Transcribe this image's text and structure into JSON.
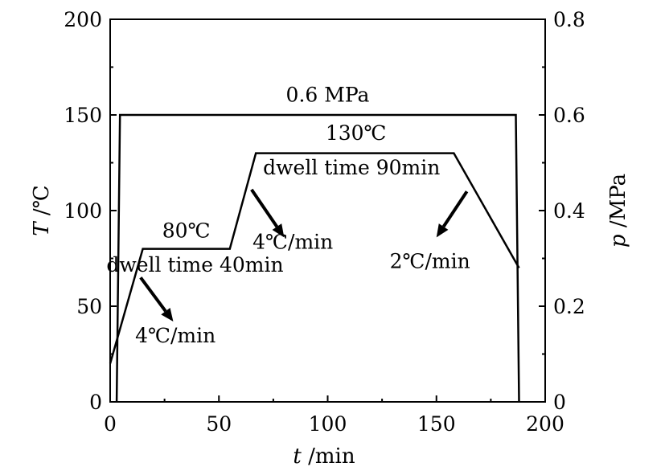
{
  "chart_data": {
    "type": "line",
    "xlabel": {
      "symbol": "t",
      "unit": " /min"
    },
    "ylabel_left": {
      "symbol": "T",
      "unit": " /℃"
    },
    "ylabel_right": {
      "symbol": "p",
      "unit": " /MPa"
    },
    "xlim": [
      0,
      200
    ],
    "ylim_left": [
      0,
      200
    ],
    "ylim_right": [
      0,
      0.8
    ],
    "grid": false,
    "x_ticks": [
      "0",
      "50",
      "100",
      "150",
      "200"
    ],
    "y_left_ticks": [
      "0",
      "50",
      "100",
      "150",
      "200"
    ],
    "y_right_ticks": [
      "0",
      "0.2",
      "0.4",
      "0.6",
      "0.8"
    ],
    "series": [
      {
        "axis": "left",
        "x": [
          0,
          15,
          55,
          67,
          158,
          188
        ],
        "y": [
          20,
          80,
          80,
          130,
          130,
          70
        ]
      },
      {
        "axis": "right",
        "x": [
          3,
          4.5,
          186.5,
          188
        ],
        "y": [
          0,
          0.6,
          0.6,
          0
        ]
      }
    ],
    "annotations": [
      {
        "text": "0.6 MPa",
        "x": 100,
        "y": 157
      },
      {
        "text": "130℃",
        "x": 113,
        "y": 137
      },
      {
        "text": "dwell time 90min",
        "x": 111,
        "y": 119
      },
      {
        "text": "80℃",
        "x": 35,
        "y": 86
      },
      {
        "text": "dwell time 40min",
        "x": 39,
        "y": 68
      },
      {
        "text": "4℃/min",
        "x": 84,
        "y": 80
      },
      {
        "text": "2℃/min",
        "x": 147,
        "y": 70
      },
      {
        "text": "4℃/min",
        "x": 30,
        "y": 31
      }
    ],
    "arrows": [
      {
        "from": [
          65,
          111
        ],
        "to": [
          80,
          86
        ]
      },
      {
        "from": [
          164,
          110
        ],
        "to": [
          150,
          86
        ]
      },
      {
        "from": [
          14,
          65
        ],
        "to": [
          29,
          42
        ]
      }
    ]
  }
}
